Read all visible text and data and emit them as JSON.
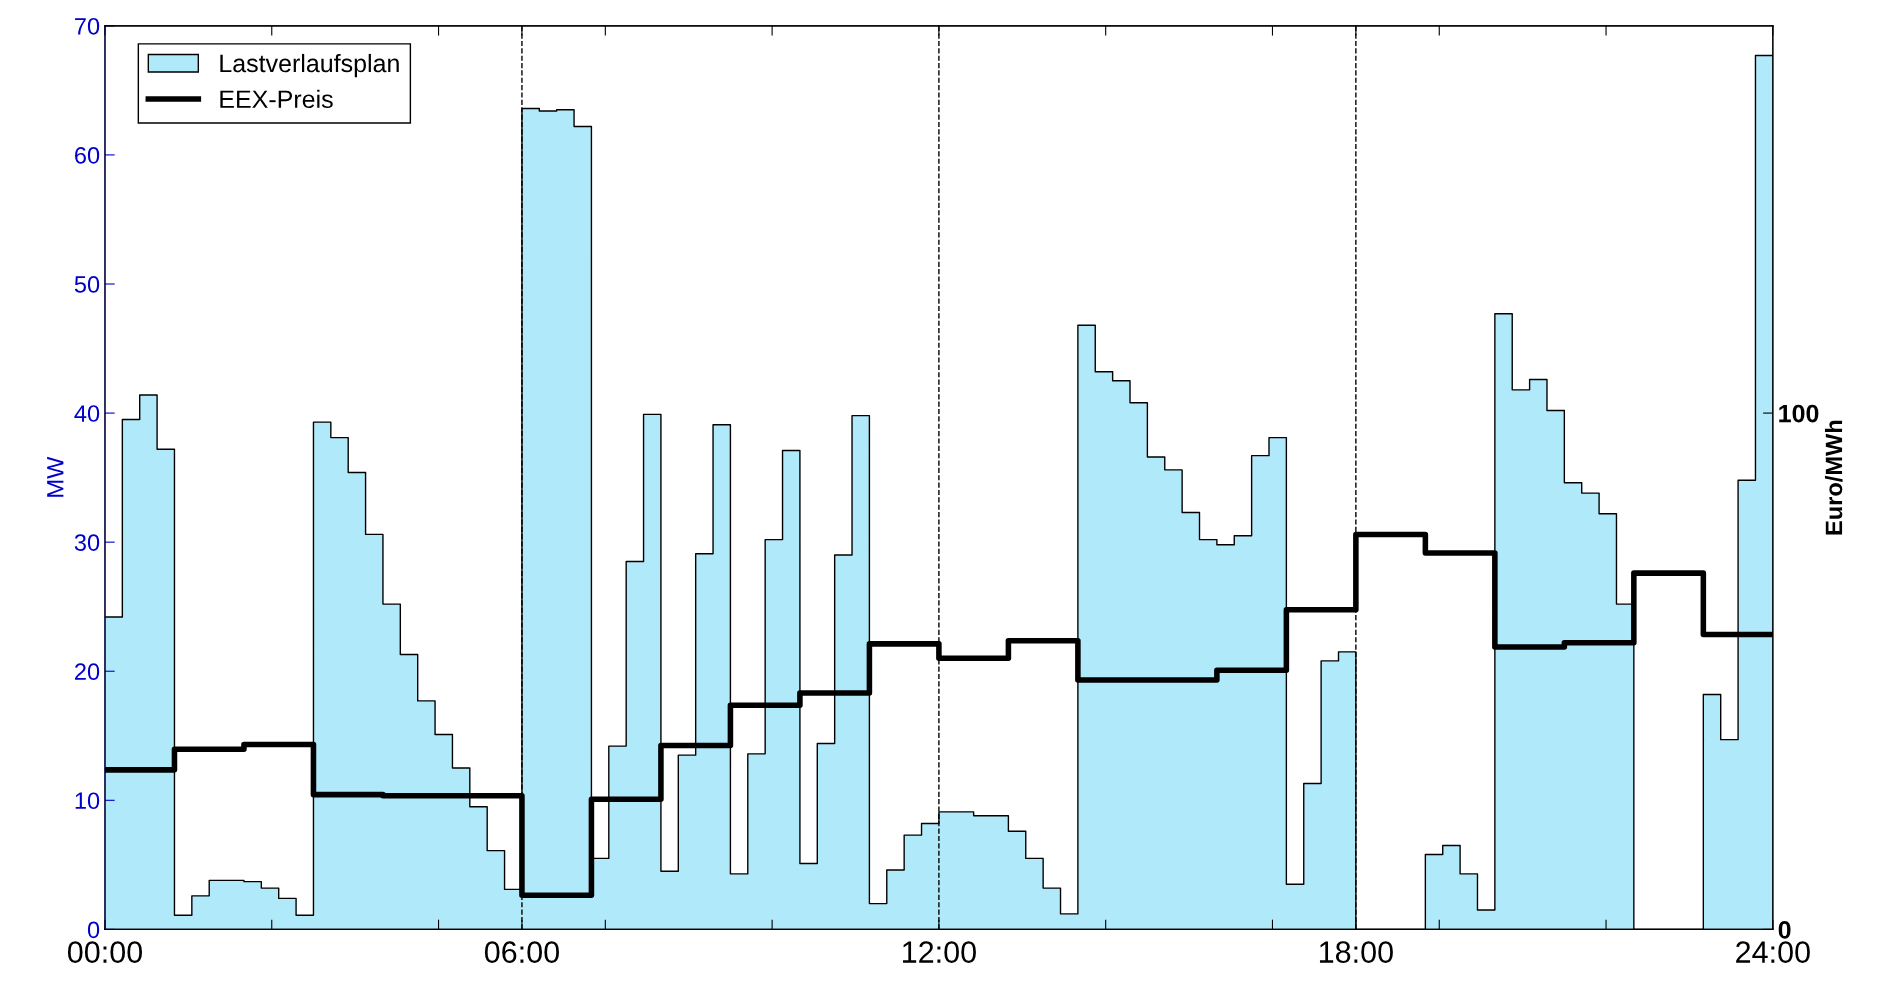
{
  "chart_data": {
    "type": "area",
    "xlim": [
      0,
      24
    ],
    "xticks": [
      {
        "value": 0,
        "label": "00:00"
      },
      {
        "value": 2.4,
        "label": null
      },
      {
        "value": 4.8,
        "label": null
      },
      {
        "value": 6,
        "label": "06:00"
      },
      {
        "value": 7.2,
        "label": null
      },
      {
        "value": 9.6,
        "label": null
      },
      {
        "value": 12,
        "label": "12:00"
      },
      {
        "value": 14.4,
        "label": null
      },
      {
        "value": 16.8,
        "label": null
      },
      {
        "value": 18,
        "label": "18:00"
      },
      {
        "value": 19.2,
        "label": null
      },
      {
        "value": 21.6,
        "label": null
      },
      {
        "value": 24,
        "label": "24:00"
      }
    ],
    "ylim": [
      0,
      70
    ],
    "yticks": [
      0,
      10,
      20,
      30,
      40,
      50,
      60,
      70
    ],
    "y2lim": [
      0,
      175
    ],
    "y2ticks": [
      0,
      100
    ],
    "ylabel": "MW",
    "y2label": "Euro/MWh",
    "legend": "top left",
    "grid": false,
    "ref_lines": [
      {
        "axis": "x",
        "value": 6,
        "color": "#000000",
        "line_style": "dashed"
      },
      {
        "axis": "x",
        "value": 12,
        "color": "#000000",
        "line_style": "dashed"
      },
      {
        "axis": "x",
        "value": 18,
        "color": "#000000",
        "line_style": "dashed"
      }
    ],
    "series": [
      {
        "name": "Lastverlaufsplan",
        "color": "#b0e9fa",
        "x": [
          0,
          0.25,
          0.5,
          0.75,
          1,
          1.25,
          1.5,
          1.75,
          2,
          2.25,
          2.5,
          2.75,
          3,
          3.25,
          3.5,
          3.75,
          4,
          4.25,
          4.5,
          4.75,
          5,
          5.25,
          5.5,
          5.75,
          6,
          6.25,
          6.5,
          6.75,
          7,
          7.25,
          7.5,
          7.75,
          8,
          8.25,
          8.5,
          8.75,
          9,
          9.25,
          9.5,
          9.75,
          10,
          10.25,
          10.5,
          10.75,
          11,
          11.25,
          11.5,
          11.75,
          12,
          12.25,
          12.5,
          12.75,
          13,
          13.25,
          13.5,
          13.75,
          14,
          14.25,
          14.5,
          14.75,
          15,
          15.25,
          15.5,
          15.75,
          16,
          16.25,
          16.5,
          16.75,
          17,
          17.25,
          17.5,
          17.75,
          18,
          18.25,
          18.5,
          18.75,
          19,
          19.25,
          19.5,
          19.75,
          20,
          20.25,
          20.5,
          20.75,
          21,
          21.25,
          21.5,
          21.75,
          22,
          22.25,
          22.5,
          22.75,
          23,
          23.25,
          23.5,
          23.75,
          24
        ],
        "values": [
          24.2,
          39.5,
          41.4,
          37.2,
          1.1,
          2.6,
          3.8,
          3.8,
          3.7,
          3.2,
          2.4,
          1.1,
          39.3,
          38.1,
          35.4,
          30.6,
          25.2,
          21.3,
          17.7,
          15.1,
          12.5,
          9.5,
          6.1,
          3.1,
          63.6,
          63.4,
          63.5,
          62.2,
          5.5,
          14.2,
          28.5,
          39.9,
          4.5,
          13.5,
          29.1,
          39.1,
          4.3,
          13.6,
          30.2,
          37.1,
          5.1,
          14.4,
          29.0,
          39.8,
          2.0,
          4.6,
          7.3,
          8.2,
          9.1,
          9.1,
          8.8,
          8.8,
          7.6,
          5.5,
          3.2,
          1.2,
          46.8,
          43.2,
          42.5,
          40.8,
          36.6,
          35.6,
          32.3,
          30.2,
          29.8,
          30.5,
          36.7,
          38.1,
          3.5,
          11.3,
          20.8,
          21.5,
          0,
          0,
          0,
          0,
          5.8,
          6.5,
          4.3,
          1.5,
          47.7,
          41.8,
          42.6,
          40.2,
          34.6,
          33.8,
          32.2,
          25.2,
          0,
          0,
          0,
          0,
          18.2,
          14.7,
          34.8,
          67.7,
          67.7
        ]
      },
      {
        "name": "EEX-Preis",
        "type": "step",
        "axis": "y2",
        "color": "#000000",
        "x": [
          0,
          1,
          2,
          3,
          4,
          5,
          6,
          7,
          8,
          9,
          10,
          11,
          12,
          13,
          14,
          15,
          16,
          17,
          18,
          19,
          20,
          21,
          22,
          23,
          24
        ],
        "values": [
          30.9,
          34.9,
          35.8,
          26.1,
          25.9,
          25.9,
          6.6,
          25.2,
          35.6,
          43.4,
          45.8,
          55.3,
          52.5,
          55.9,
          48.3,
          48.3,
          50.2,
          61.9,
          76.5,
          72.9,
          54.7,
          55.5,
          69.0,
          57.1,
          57.1
        ]
      }
    ]
  }
}
